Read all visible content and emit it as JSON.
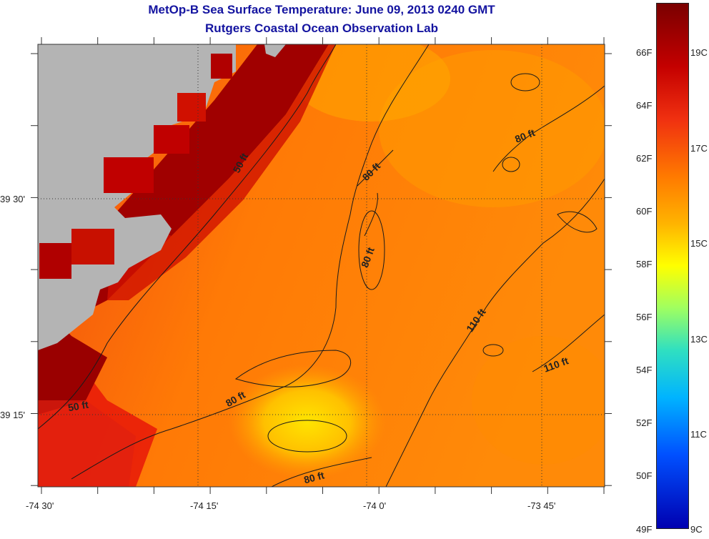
{
  "title": {
    "line1": "MetOp-B Sea Surface Temperature:  June 09, 2013 0240 GMT",
    "line2": "Rutgers Coastal Ocean Observation Lab"
  },
  "map": {
    "land_color": "#b4b4b4",
    "x_ticks": [
      "-74 30'",
      "-74 15'",
      "-74 0'",
      "-73 45'"
    ],
    "y_ticks": [
      "39 30'",
      "39 15'"
    ],
    "contour_labels": [
      "50 ft",
      "80 ft",
      "80 ft",
      "80 ft",
      "110 ft",
      "110 ft",
      "80 ft",
      "50 ft",
      "80 ft"
    ]
  },
  "colorbar": {
    "fahrenheit": [
      "66F",
      "64F",
      "62F",
      "60F",
      "58F",
      "56F",
      "54F",
      "52F",
      "50F",
      "49F"
    ],
    "celsius": [
      "19C",
      "17C",
      "15C",
      "13C",
      "11C",
      "9C"
    ]
  }
}
